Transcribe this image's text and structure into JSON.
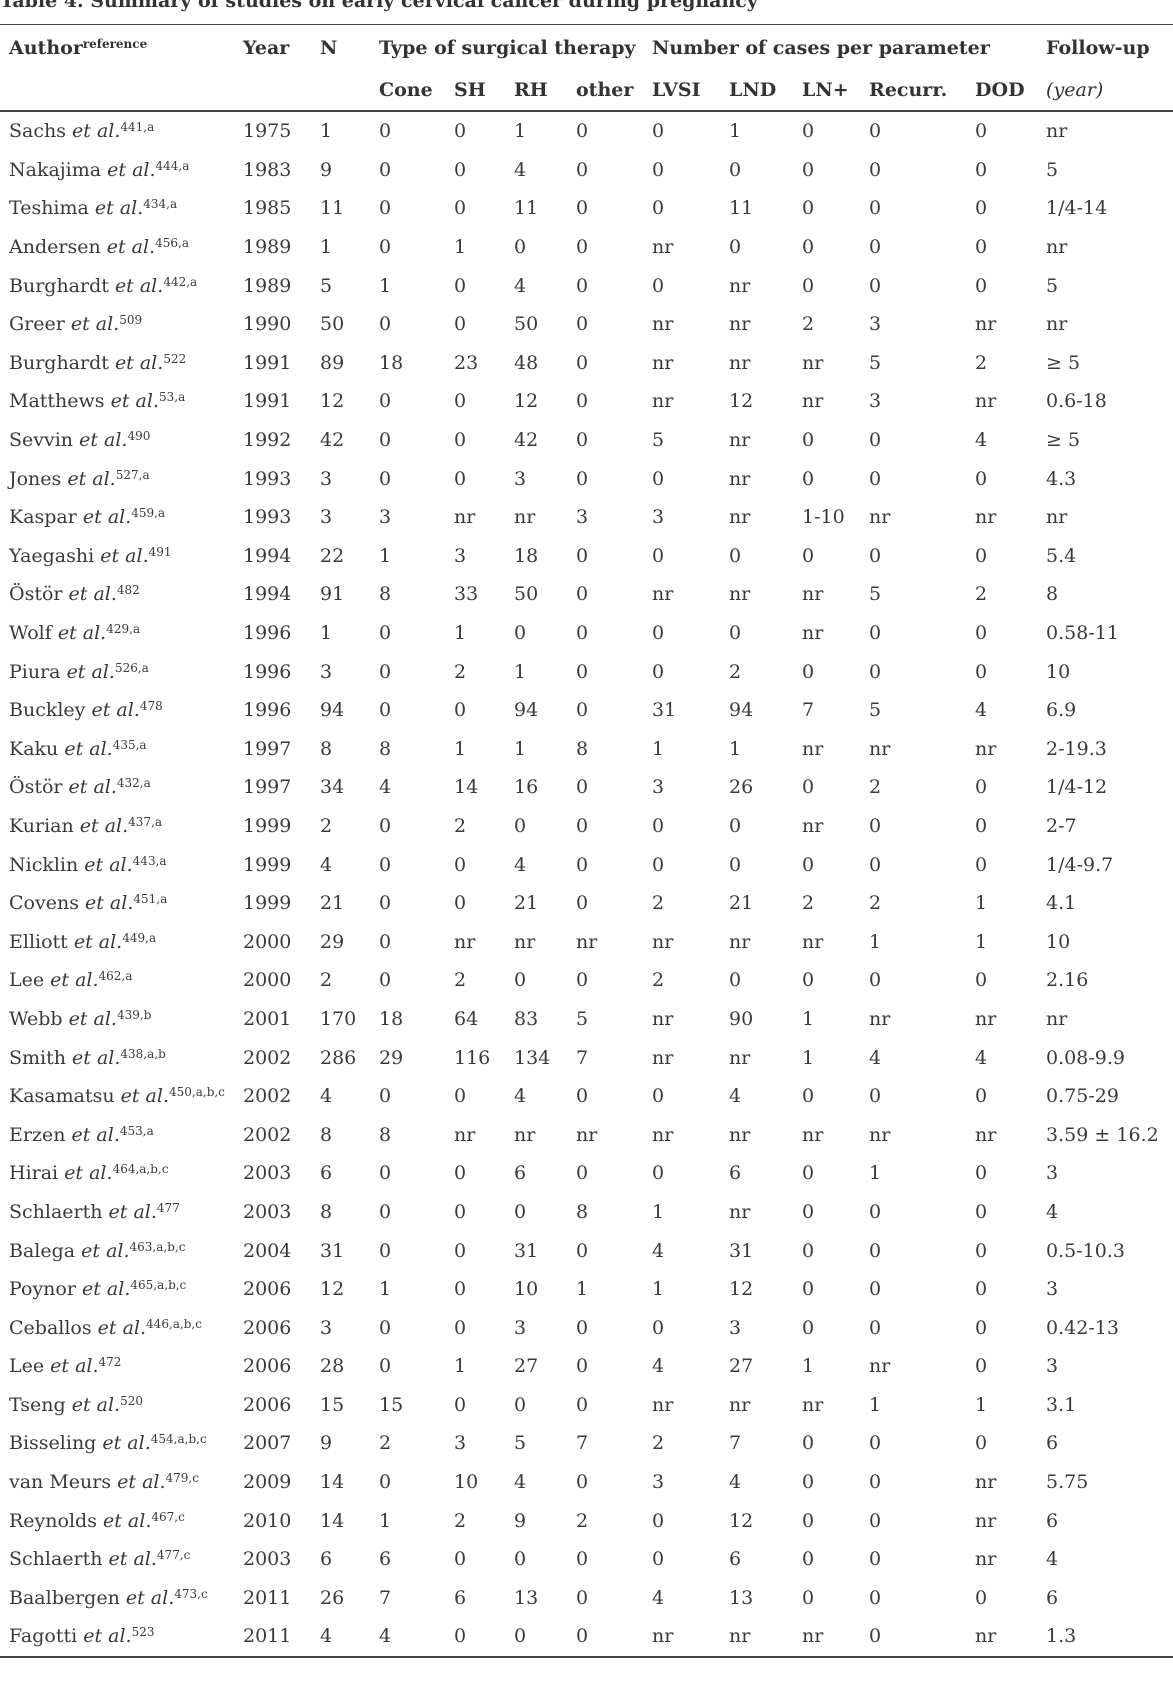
{
  "caption": "Table 4. Summary of studies on early cervical cancer during pregnancy",
  "headers": {
    "author": "Author",
    "author_sup": "reference",
    "year": "Year",
    "n": "N",
    "group_surgery": "Type of surgical therapy",
    "group_cases": "Number of cases per parameter",
    "followup": "Follow-up",
    "sub": [
      "Cone",
      "SH",
      "RH",
      "other",
      "LVSI",
      "LND",
      "LN+",
      "Recurr.",
      "DOD"
    ],
    "followup_unit": "(year)"
  },
  "rows": [
    {
      "name": "Sachs",
      "etal": "et al.",
      "ref": "441,a",
      "cells": [
        "1975",
        "1",
        "0",
        "0",
        "1",
        "0",
        "0",
        "1",
        "0",
        "0",
        "0",
        "nr"
      ]
    },
    {
      "name": "Nakajima",
      "etal": "et al.",
      "ref": "444,a",
      "cells": [
        "1983",
        "9",
        "0",
        "0",
        "4",
        "0",
        "0",
        "0",
        "0",
        "0",
        "0",
        "5"
      ]
    },
    {
      "name": "Teshima",
      "etal": "et al.",
      "ref": "434,a",
      "cells": [
        "1985",
        "11",
        "0",
        "0",
        "11",
        "0",
        "0",
        "11",
        "0",
        "0",
        "0",
        "1/4-14"
      ]
    },
    {
      "name": "Andersen",
      "etal": "et al.",
      "ref": "456,a",
      "cells": [
        "1989",
        "1",
        "0",
        "1",
        "0",
        "0",
        "nr",
        "0",
        "0",
        "0",
        "0",
        "nr"
      ]
    },
    {
      "name": "Burghardt",
      "etal": "et al.",
      "ref": "442,a",
      "cells": [
        "1989",
        "5",
        "1",
        "0",
        "4",
        "0",
        "0",
        "nr",
        "0",
        "0",
        "0",
        "5"
      ]
    },
    {
      "name": "Greer",
      "etal": "et al.",
      "ref": "509",
      "cells": [
        "1990",
        "50",
        "0",
        "0",
        "50",
        "0",
        "nr",
        "nr",
        "2",
        "3",
        "nr",
        "nr"
      ]
    },
    {
      "name": "Burghardt",
      "etal": "et al.",
      "ref": "522",
      "cells": [
        "1991",
        "89",
        "18",
        "23",
        "48",
        "0",
        "nr",
        "nr",
        "nr",
        "5",
        "2",
        "≥ 5"
      ]
    },
    {
      "name": "Matthews",
      "etal": "et al.",
      "ref": "53,a",
      "cells": [
        "1991",
        "12",
        "0",
        "0",
        "12",
        "0",
        "nr",
        "12",
        "nr",
        "3",
        "nr",
        "0.6-18"
      ]
    },
    {
      "name": "Sevvin",
      "etal": "et al.",
      "ref": "490",
      "cells": [
        "1992",
        "42",
        "0",
        "0",
        "42",
        "0",
        "5",
        "nr",
        "0",
        "0",
        "4",
        "≥ 5"
      ]
    },
    {
      "name": "Jones",
      "etal": "et al.",
      "ref": "527,a",
      "cells": [
        "1993",
        "3",
        "0",
        "0",
        "3",
        "0",
        "0",
        "nr",
        "0",
        "0",
        "0",
        "4.3"
      ]
    },
    {
      "name": "Kaspar",
      "etal": "et al.",
      "ref": "459,a",
      "cells": [
        "1993",
        "3",
        "3",
        "nr",
        "nr",
        "3",
        "3",
        "nr",
        "1-10",
        "nr",
        "nr",
        "nr"
      ]
    },
    {
      "name": "Yaegashi",
      "etal": "et al.",
      "ref": "491",
      "cells": [
        "1994",
        "22",
        "1",
        "3",
        "18",
        "0",
        "0",
        "0",
        "0",
        "0",
        "0",
        "5.4"
      ]
    },
    {
      "name": "Östör",
      "etal": "et al.",
      "ref": "482",
      "cells": [
        "1994",
        "91",
        "8",
        "33",
        "50",
        "0",
        "nr",
        "nr",
        "nr",
        "5",
        "2",
        "8"
      ]
    },
    {
      "name": "Wolf",
      "etal": "et al.",
      "ref": "429,a",
      "cells": [
        "1996",
        "1",
        "0",
        "1",
        "0",
        "0",
        "0",
        "0",
        "nr",
        "0",
        "0",
        "0.58-11"
      ]
    },
    {
      "name": "Piura",
      "etal": "et al.",
      "ref": "526,a",
      "cells": [
        "1996",
        "3",
        "0",
        "2",
        "1",
        "0",
        "0",
        "2",
        "0",
        "0",
        "0",
        "10"
      ]
    },
    {
      "name": "Buckley",
      "etal": "et al.",
      "ref": "478",
      "cells": [
        "1996",
        "94",
        "0",
        "0",
        "94",
        "0",
        "31",
        "94",
        "7",
        "5",
        "4",
        "6.9"
      ]
    },
    {
      "name": "Kaku",
      "etal": "et al.",
      "ref": "435,a",
      "cells": [
        "1997",
        "8",
        "8",
        "1",
        "1",
        "8",
        "1",
        "1",
        "nr",
        "nr",
        "nr",
        "2-19.3"
      ]
    },
    {
      "name": "Östör",
      "etal": "et al.",
      "ref": "432,a",
      "cells": [
        "1997",
        "34",
        "4",
        "14",
        "16",
        "0",
        "3",
        "26",
        "0",
        "2",
        "0",
        "1/4-12"
      ]
    },
    {
      "name": "Kurian",
      "etal": "et al.",
      "ref": "437,a",
      "cells": [
        "1999",
        "2",
        "0",
        "2",
        "0",
        "0",
        "0",
        "0",
        "nr",
        "0",
        "0",
        "2-7"
      ]
    },
    {
      "name": "Nicklin",
      "etal": "et al.",
      "ref": "443,a",
      "cells": [
        "1999",
        "4",
        "0",
        "0",
        "4",
        "0",
        "0",
        "0",
        "0",
        "0",
        "0",
        "1/4-9.7"
      ]
    },
    {
      "name": "Covens",
      "etal": "et al.",
      "ref": "451,a",
      "cells": [
        "1999",
        "21",
        "0",
        "0",
        "21",
        "0",
        "2",
        "21",
        "2",
        "2",
        "1",
        "4.1"
      ]
    },
    {
      "name": "Elliott",
      "etal": "et al.",
      "ref": "449,a",
      "cells": [
        "2000",
        "29",
        "0",
        "nr",
        "nr",
        "nr",
        "nr",
        "nr",
        "nr",
        "1",
        "1",
        "10"
      ]
    },
    {
      "name": "Lee",
      "etal": "et al.",
      "ref": "462,a",
      "cells": [
        "2000",
        "2",
        "0",
        "2",
        "0",
        "0",
        "2",
        "0",
        "0",
        "0",
        "0",
        "2.16"
      ]
    },
    {
      "name": "Webb",
      "etal": "et al.",
      "ref": "439,b",
      "cells": [
        "2001",
        "170",
        "18",
        "64",
        "83",
        "5",
        "nr",
        "90",
        "1",
        "nr",
        "nr",
        "nr"
      ]
    },
    {
      "name": "Smith",
      "etal": "et al.",
      "ref": "438,a,b",
      "cells": [
        "2002",
        "286",
        "29",
        "116",
        "134",
        "7",
        "nr",
        "nr",
        "1",
        "4",
        "4",
        "0.08-9.9"
      ]
    },
    {
      "name": "Kasamatsu",
      "etal": "et al.",
      "ref": "450,a,b,c",
      "cells": [
        "2002",
        "4",
        "0",
        "0",
        "4",
        "0",
        "0",
        "4",
        "0",
        "0",
        "0",
        "0.75-29"
      ]
    },
    {
      "name": "Erzen",
      "etal": "et al.",
      "ref": "453,a",
      "cells": [
        "2002",
        "8",
        "8",
        "nr",
        "nr",
        "nr",
        "nr",
        "nr",
        "nr",
        "nr",
        "nr",
        "3.59 ± 16.2"
      ]
    },
    {
      "name": "Hirai",
      "etal": "et al.",
      "ref": "464,a,b,c",
      "cells": [
        "2003",
        "6",
        "0",
        "0",
        "6",
        "0",
        "0",
        "6",
        "0",
        "1",
        "0",
        "3"
      ]
    },
    {
      "name": "Schlaerth",
      "etal": "et al.",
      "ref": "477",
      "cells": [
        "2003",
        "8",
        "0",
        "0",
        "0",
        "8",
        "1",
        "nr",
        "0",
        "0",
        "0",
        "4"
      ]
    },
    {
      "name": "Balega",
      "etal": "et al.",
      "ref": "463,a,b,c",
      "cells": [
        "2004",
        "31",
        "0",
        "0",
        "31",
        "0",
        "4",
        "31",
        "0",
        "0",
        "0",
        "0.5-10.3"
      ]
    },
    {
      "name": "Poynor",
      "etal": "et al.",
      "ref": "465,a,b,c",
      "cells": [
        "2006",
        "12",
        "1",
        "0",
        "10",
        "1",
        "1",
        "12",
        "0",
        "0",
        "0",
        "3"
      ]
    },
    {
      "name": "Ceballos",
      "etal": "et al.",
      "ref": "446,a,b,c",
      "cells": [
        "2006",
        "3",
        "0",
        "0",
        "3",
        "0",
        "0",
        "3",
        "0",
        "0",
        "0",
        "0.42-13"
      ]
    },
    {
      "name": "Lee",
      "etal": "et al.",
      "ref": "472",
      "cells": [
        "2006",
        "28",
        "0",
        "1",
        "27",
        "0",
        "4",
        "27",
        "1",
        "nr",
        "0",
        "3"
      ]
    },
    {
      "name": "Tseng",
      "etal": "et al.",
      "ref": "520",
      "cells": [
        "2006",
        "15",
        "15",
        "0",
        "0",
        "0",
        "nr",
        "nr",
        "nr",
        "1",
        "1",
        "3.1"
      ]
    },
    {
      "name": "Bisseling",
      "etal": "et al.",
      "ref": "454,a,b,c",
      "cells": [
        "2007",
        "9",
        "2",
        "3",
        "5",
        "7",
        "2",
        "7",
        "0",
        "0",
        "0",
        "6"
      ]
    },
    {
      "name": "van Meurs",
      "etal": "et al.",
      "ref": "479,c",
      "cells": [
        "2009",
        "14",
        "0",
        "10",
        "4",
        "0",
        "3",
        "4",
        "0",
        "0",
        "nr",
        "5.75"
      ]
    },
    {
      "name": "Reynolds",
      "etal": "et al.",
      "ref": "467,c",
      "cells": [
        "2010",
        "14",
        "1",
        "2",
        "9",
        "2",
        "0",
        "12",
        "0",
        "0",
        "nr",
        "6"
      ]
    },
    {
      "name": "Schlaerth",
      "etal": "et al.",
      "ref": "477,c",
      "cells": [
        "2003",
        "6",
        "6",
        "0",
        "0",
        "0",
        "0",
        "6",
        "0",
        "0",
        "nr",
        "4"
      ]
    },
    {
      "name": "Baalbergen",
      "etal": "et al.",
      "ref": "473,c",
      "cells": [
        "2011",
        "26",
        "7",
        "6",
        "13",
        "0",
        "4",
        "13",
        "0",
        "0",
        "0",
        "6"
      ]
    },
    {
      "name": "Fagotti",
      "etal": "et al.",
      "ref": "523",
      "cells": [
        "2011",
        "4",
        "4",
        "0",
        "0",
        "0",
        "nr",
        "nr",
        "nr",
        "0",
        "nr",
        "1.3"
      ]
    }
  ]
}
